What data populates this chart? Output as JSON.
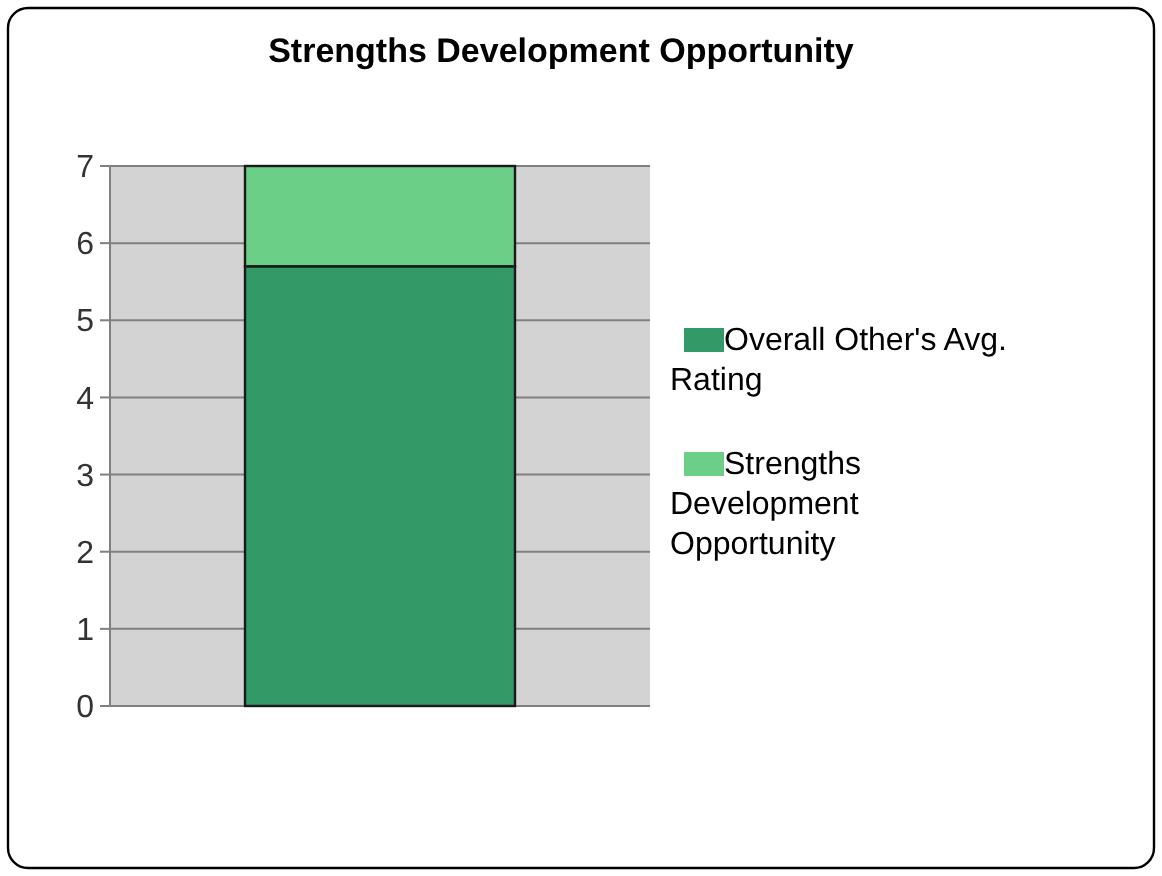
{
  "chart_data": {
    "type": "bar",
    "title": "Strengths Development Opportunity",
    "categories": [
      null
    ],
    "stacked": true,
    "series": [
      {
        "name": "Overall Other's Avg. Rating",
        "color": "#339966",
        "values": [
          5.7
        ]
      },
      {
        "name": "Strengths Development Opportunity",
        "color": "#6ccf88",
        "values": [
          1.3
        ]
      }
    ],
    "ylim": [
      0,
      7
    ],
    "yticks": [
      0,
      1,
      2,
      3,
      4,
      5,
      6,
      7
    ],
    "grid": "y",
    "legend": "right"
  }
}
